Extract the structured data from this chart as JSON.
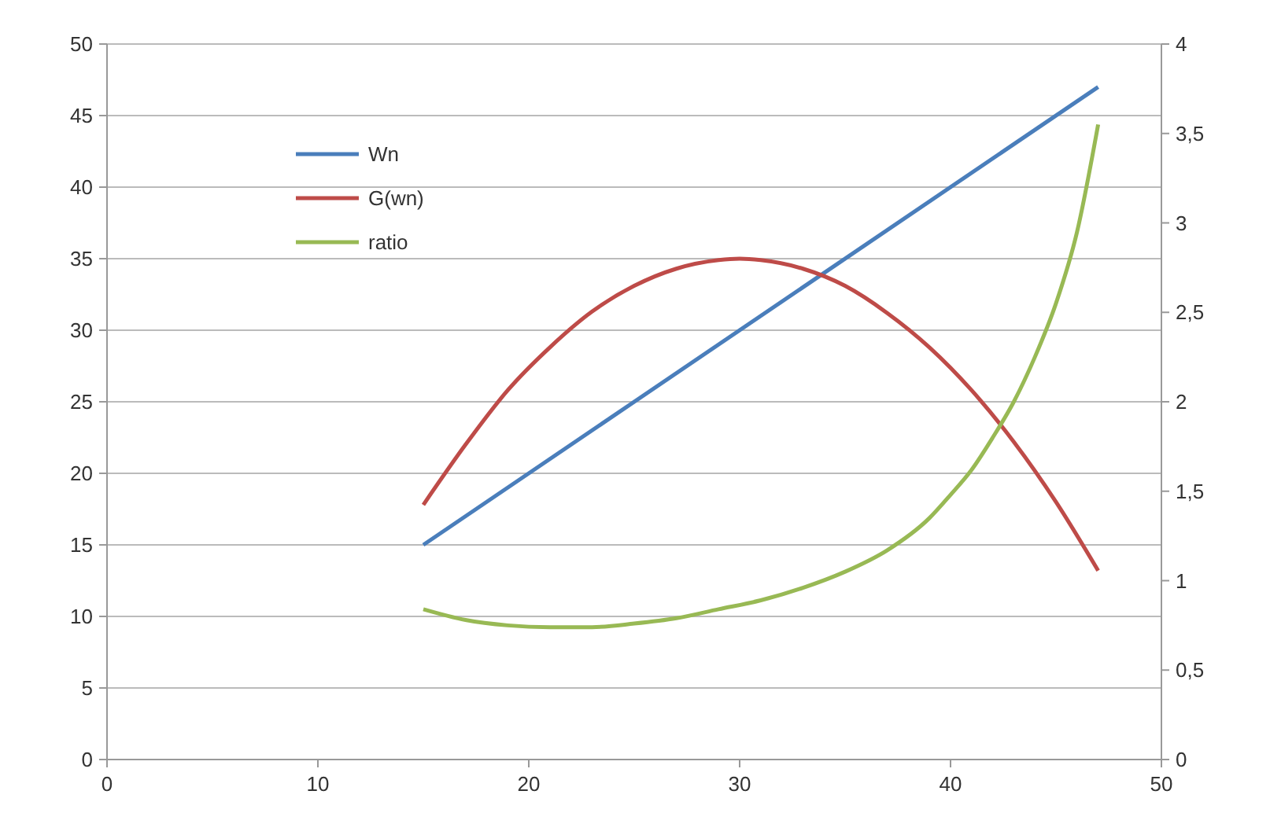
{
  "chart_data": {
    "type": "line",
    "xlim": [
      0,
      50
    ],
    "xticks": [
      0,
      10,
      20,
      30,
      40,
      50
    ],
    "ylim": [
      0,
      50
    ],
    "yticks": [
      0,
      5,
      10,
      15,
      20,
      25,
      30,
      35,
      40,
      45,
      50
    ],
    "y2lim": [
      0,
      4
    ],
    "y2ticks": [
      0,
      {
        "value": 0.5,
        "label": "0,5"
      },
      1,
      {
        "value": 1.5,
        "label": "1,5"
      },
      2,
      {
        "value": 2.5,
        "label": "2,5"
      },
      3,
      {
        "value": 3.5,
        "label": "3,5"
      },
      4
    ],
    "grid": "y",
    "legend": "top left",
    "marker": "none",
    "line_style": "solid",
    "series": [
      {
        "name": "Wn",
        "color": "#4a7ebb",
        "x": [
          15,
          47
        ],
        "values": [
          15,
          47
        ]
      },
      {
        "name": "G(wn)",
        "color": "#be4b48",
        "x": [
          15,
          17,
          19,
          21,
          23,
          25,
          27,
          29,
          30,
          31,
          33,
          35,
          37,
          39,
          41,
          43,
          45,
          47
        ],
        "values": [
          17.8,
          22,
          25.8,
          28.8,
          31.3,
          33.1,
          34.3,
          34.9,
          35,
          34.9,
          34.3,
          33.1,
          31.2,
          28.8,
          25.8,
          22.2,
          18,
          13.2
        ]
      },
      {
        "name": "ratio",
        "color": "#98b954",
        "axis": "y2",
        "x": [
          15,
          17,
          19,
          21,
          23,
          25,
          27,
          29,
          31,
          33,
          35,
          37,
          39,
          40,
          41,
          42,
          43,
          44,
          45,
          46,
          47
        ],
        "values": [
          0.84,
          0.78,
          0.75,
          0.74,
          0.74,
          0.76,
          0.79,
          0.84,
          0.89,
          0.96,
          1.05,
          1.17,
          1.35,
          1.48,
          1.62,
          1.8,
          2.0,
          2.25,
          2.55,
          2.95,
          3.55
        ]
      }
    ]
  }
}
